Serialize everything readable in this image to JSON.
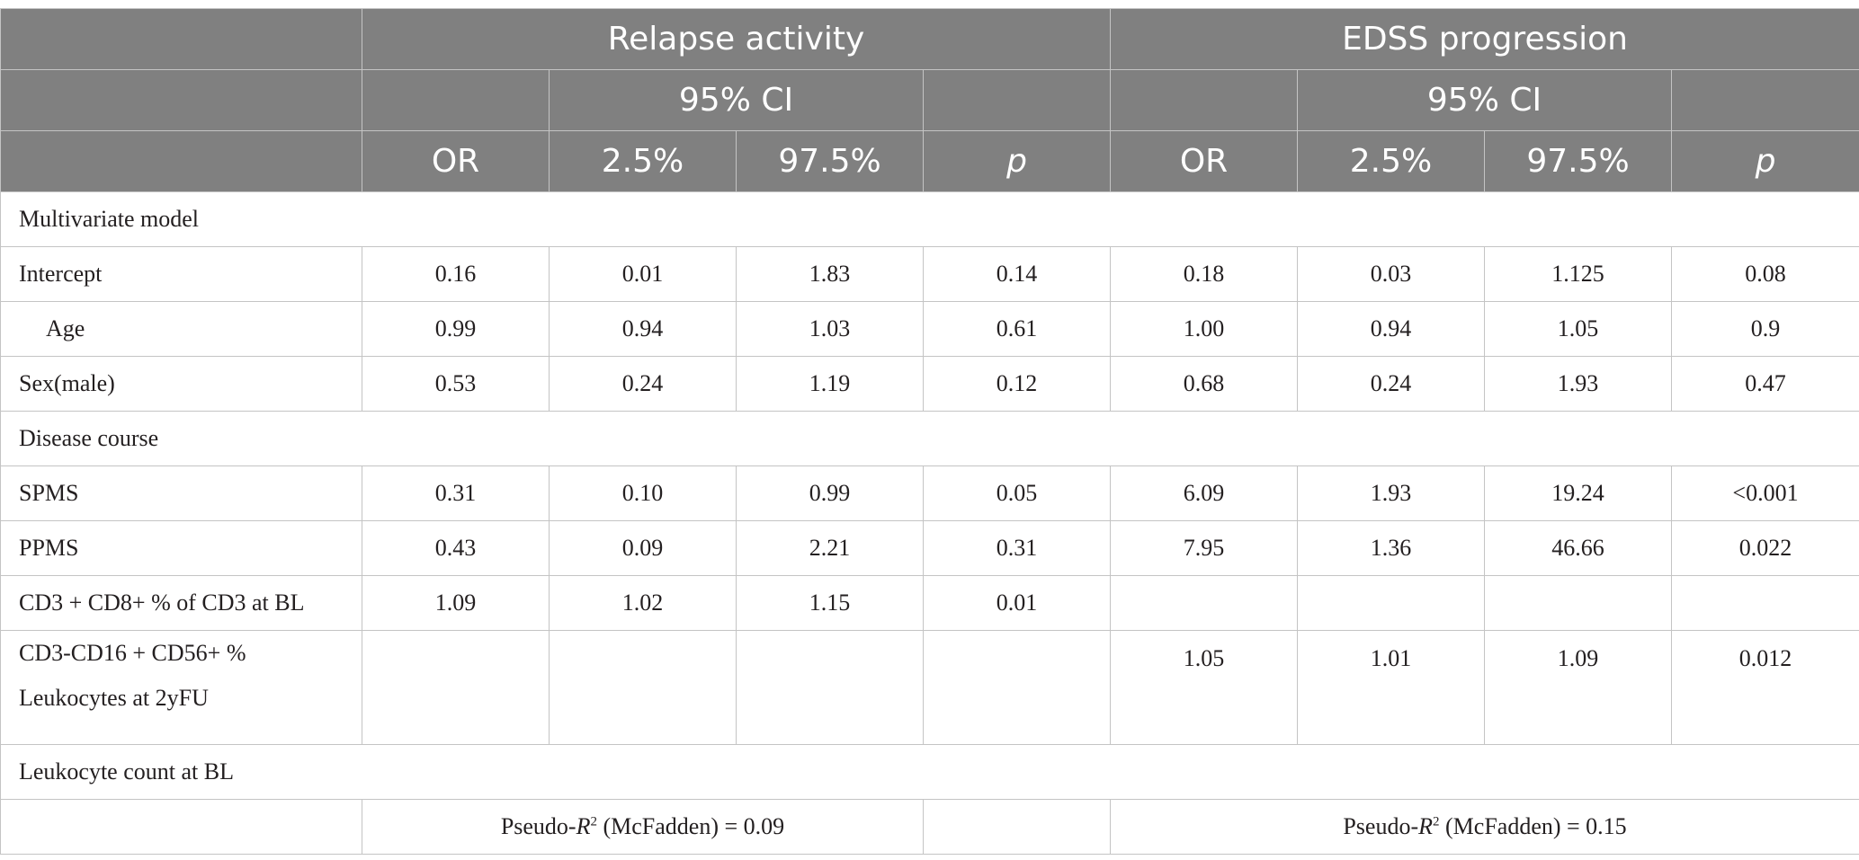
{
  "header": {
    "group_relapse": "Relapse activity",
    "group_edss": "EDSS progression",
    "ci_label": "95% CI",
    "col_or": "OR",
    "col_low": "2.5%",
    "col_high": "97.5%",
    "col_p": "p"
  },
  "sections": {
    "multivariate": "Multivariate model",
    "disease_course": "Disease course",
    "leukocyte_count": "Leukocyte count at BL"
  },
  "rows": {
    "intercept": {
      "label": "Intercept",
      "values": [
        "0.16",
        "0.01",
        "1.83",
        "0.14",
        "0.18",
        "0.03",
        "1.125",
        "0.08"
      ]
    },
    "age": {
      "label": "Age",
      "values": [
        "0.99",
        "0.94",
        "1.03",
        "0.61",
        "1.00",
        "0.94",
        "1.05",
        "0.9"
      ]
    },
    "sex": {
      "label": "Sex(male)",
      "values": [
        "0.53",
        "0.24",
        "1.19",
        "0.12",
        "0.68",
        "0.24",
        "1.93",
        "0.47"
      ]
    },
    "spms": {
      "label": "SPMS",
      "values": [
        "0.31",
        "0.10",
        "0.99",
        "0.05",
        "6.09",
        "1.93",
        "19.24",
        "<0.001"
      ]
    },
    "ppms": {
      "label": "PPMS",
      "values": [
        "0.43",
        "0.09",
        "2.21",
        "0.31",
        "7.95",
        "1.36",
        "46.66",
        "0.022"
      ]
    },
    "cd8": {
      "label": "CD3 + CD8+ % of CD3 at BL",
      "values": [
        "1.09",
        "1.02",
        "1.15",
        "0.01",
        "",
        "",
        "",
        ""
      ]
    },
    "nk": {
      "label_line1": "CD3-CD16 + CD56+ %",
      "label_line2": "Leukocytes at 2yFU",
      "values": [
        "",
        "",
        "",
        "",
        "1.05",
        "1.01",
        "1.09",
        "0.012"
      ]
    }
  },
  "pseudo_r2": {
    "prefix": "Pseudo-",
    "symbol": "R",
    "superscript": "2",
    "relapse_suffix": " (McFadden) = 0.09",
    "edss_suffix": " (McFadden) = 0.15"
  }
}
